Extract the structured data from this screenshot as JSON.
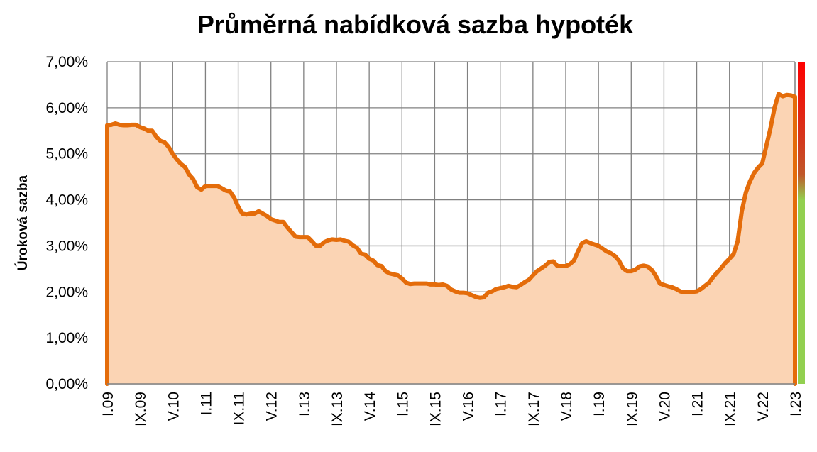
{
  "chart_data": {
    "type": "area",
    "title": "Průměrná nabídková sazba hypoték",
    "xlabel": "",
    "ylabel": "Úroková sazba",
    "y_ticks": [
      "0,00%",
      "1,00%",
      "2,00%",
      "3,00%",
      "4,00%",
      "5,00%",
      "6,00%",
      "7,00%"
    ],
    "ylim": [
      0,
      7
    ],
    "x_ticks": [
      "I.09",
      "IX.09",
      "V.10",
      "I.11",
      "IX.11",
      "V.12",
      "I.13",
      "IX.13",
      "V.14",
      "I.15",
      "IX.15",
      "V.16",
      "I.17",
      "IX.17",
      "V.18",
      "I.19",
      "IX.19",
      "V.20",
      "I.21",
      "IX.21",
      "V.22",
      "I.23"
    ],
    "grid": true,
    "colors": {
      "line": "#e46c0a",
      "fill": "#fbd4b4",
      "grid": "#808080",
      "scale_top": "#ff0000",
      "scale_mid": "#c0504d",
      "scale_bottom": "#92d050"
    },
    "series": [
      {
        "x": [
          "I.09",
          "II.09",
          "III.09",
          "IV.09",
          "V.09",
          "VI.09",
          "VII.09",
          "VIII.09",
          "IX.09",
          "X.09",
          "XI.09",
          "XII.09",
          "I.10",
          "II.10",
          "III.10",
          "IV.10",
          "V.10",
          "VI.10",
          "VII.10",
          "VIII.10",
          "IX.10",
          "X.10",
          "XI.10",
          "XII.10",
          "I.11",
          "II.11",
          "III.11",
          "IV.11",
          "V.11",
          "VI.11",
          "VII.11",
          "VIII.11",
          "IX.11",
          "X.11",
          "XI.11",
          "XII.11",
          "I.12",
          "II.12",
          "III.12",
          "IV.12",
          "V.12",
          "VI.12",
          "VII.12",
          "VIII.12",
          "IX.12",
          "X.12",
          "XI.12",
          "XII.12",
          "I.13",
          "II.13",
          "III.13",
          "IV.13",
          "V.13",
          "VI.13",
          "VII.13",
          "VIII.13",
          "IX.13",
          "X.13",
          "XI.13",
          "XII.13",
          "I.14",
          "II.14",
          "III.14",
          "IV.14",
          "V.14",
          "VI.14",
          "VII.14",
          "VIII.14",
          "IX.14",
          "X.14",
          "XI.14",
          "XII.14",
          "I.15",
          "II.15",
          "III.15",
          "IV.15",
          "V.15",
          "VI.15",
          "VII.15",
          "VIII.15",
          "IX.15",
          "X.15",
          "XI.15",
          "XII.15",
          "I.16",
          "II.16",
          "III.16",
          "IV.16",
          "V.16",
          "VI.16",
          "VII.16",
          "VIII.16",
          "IX.16",
          "X.16",
          "XI.16",
          "XII.16",
          "I.17",
          "II.17",
          "III.17",
          "IV.17",
          "V.17",
          "VI.17",
          "VII.17",
          "VIII.17",
          "IX.17",
          "X.17",
          "XI.17",
          "XII.17",
          "I.18",
          "II.18",
          "III.18",
          "IV.18",
          "V.18",
          "VI.18",
          "VII.18",
          "VIII.18",
          "IX.18",
          "X.18",
          "XI.18",
          "XII.18",
          "I.19",
          "II.19",
          "III.19",
          "IV.19",
          "V.19",
          "VI.19",
          "VII.19",
          "VIII.19",
          "IX.19",
          "X.19",
          "XI.19",
          "XII.19",
          "I.20",
          "II.20",
          "III.20",
          "IV.20",
          "V.20",
          "VI.20",
          "VII.20",
          "VIII.20",
          "IX.20",
          "X.20",
          "XI.20",
          "XII.20",
          "I.21",
          "II.21",
          "III.21",
          "IV.21",
          "V.21",
          "VI.21",
          "VII.21",
          "VIII.21",
          "IX.21",
          "X.21",
          "XI.21",
          "XII.21",
          "I.22",
          "II.22",
          "III.22",
          "IV.22",
          "V.22",
          "VI.22",
          "VII.22",
          "VIII.22",
          "IX.22",
          "X.22",
          "XI.22",
          "XII.22",
          "I.23"
        ],
        "values": [
          5.62,
          5.63,
          5.66,
          5.63,
          5.62,
          5.62,
          5.63,
          5.63,
          5.58,
          5.55,
          5.5,
          5.5,
          5.37,
          5.28,
          5.25,
          5.15,
          5.0,
          4.88,
          4.78,
          4.71,
          4.55,
          4.45,
          4.27,
          4.22,
          4.3,
          4.3,
          4.3,
          4.3,
          4.25,
          4.2,
          4.18,
          4.05,
          3.85,
          3.7,
          3.68,
          3.7,
          3.7,
          3.75,
          3.7,
          3.65,
          3.58,
          3.55,
          3.52,
          3.52,
          3.4,
          3.3,
          3.2,
          3.19,
          3.19,
          3.19,
          3.1,
          3.0,
          3.0,
          3.08,
          3.12,
          3.14,
          3.13,
          3.14,
          3.11,
          3.09,
          3.01,
          2.96,
          2.83,
          2.81,
          2.72,
          2.68,
          2.58,
          2.56,
          2.45,
          2.4,
          2.38,
          2.36,
          2.29,
          2.2,
          2.17,
          2.18,
          2.18,
          2.18,
          2.18,
          2.16,
          2.16,
          2.15,
          2.16,
          2.13,
          2.05,
          2.01,
          1.98,
          1.98,
          1.97,
          1.93,
          1.89,
          1.87,
          1.88,
          1.98,
          2.01,
          2.06,
          2.08,
          2.1,
          2.13,
          2.11,
          2.1,
          2.15,
          2.21,
          2.26,
          2.36,
          2.45,
          2.51,
          2.57,
          2.65,
          2.66,
          2.56,
          2.56,
          2.56,
          2.6,
          2.68,
          2.88,
          3.06,
          3.1,
          3.06,
          3.03,
          3.0,
          2.94,
          2.88,
          2.84,
          2.78,
          2.68,
          2.51,
          2.45,
          2.45,
          2.48,
          2.55,
          2.57,
          2.55,
          2.48,
          2.35,
          2.18,
          2.15,
          2.12,
          2.1,
          2.06,
          2.01,
          1.99,
          2.0,
          2.0,
          2.01,
          2.06,
          2.13,
          2.2,
          2.32,
          2.42,
          2.52,
          2.63,
          2.72,
          2.82,
          3.1,
          3.75,
          4.16,
          4.4,
          4.58,
          4.7,
          4.79,
          5.17,
          5.55,
          6.0,
          6.3,
          6.25,
          6.28,
          6.27,
          6.24
        ]
      }
    ]
  }
}
